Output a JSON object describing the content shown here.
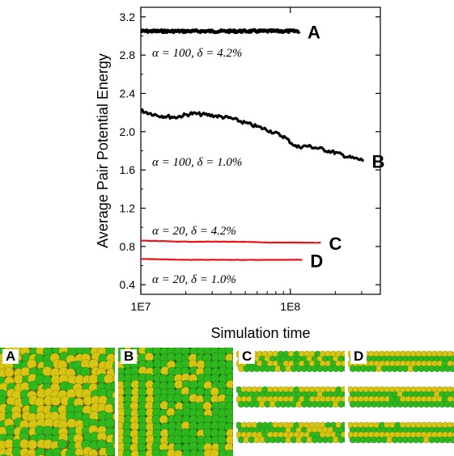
{
  "chart_data": {
    "type": "line",
    "xlabel": "Simulation time",
    "ylabel": "Average Pair Potential Energy",
    "xscale": "log",
    "xlim": [
      10000000,
      400000000
    ],
    "ylim": [
      0.3,
      3.3
    ],
    "x_ticks": [
      {
        "value": 10000000,
        "label": "1E7"
      },
      {
        "value": 100000000,
        "label": "1E8"
      }
    ],
    "y_ticks": [
      0.4,
      0.8,
      1.2,
      1.6,
      2.0,
      2.4,
      2.8,
      3.2
    ],
    "y_tick_labels": [
      "0.4",
      "0.8",
      "1.2",
      "1.6",
      "2.0",
      "2.4",
      "2.8",
      "3.2"
    ],
    "grid": false,
    "legend": "none",
    "series": [
      {
        "name": "A",
        "color": "#000000",
        "x": [
          10000000,
          20000000,
          40000000,
          70000000,
          115000000
        ],
        "y": [
          3.05,
          3.05,
          3.05,
          3.05,
          3.05
        ]
      },
      {
        "name": "B",
        "color": "#000000",
        "x": [
          10000000,
          13000000,
          17000000,
          22000000,
          30000000,
          40000000,
          55000000,
          70000000,
          90000000,
          110000000,
          130000000,
          160000000,
          200000000,
          250000000,
          310000000
        ],
        "y": [
          2.22,
          2.17,
          2.15,
          2.19,
          2.17,
          2.14,
          2.07,
          2.02,
          1.95,
          1.84,
          1.85,
          1.82,
          1.78,
          1.73,
          1.7
        ]
      },
      {
        "name": "C",
        "color": "#e8141c",
        "x": [
          10000000,
          20000000,
          40000000,
          80000000,
          160000000
        ],
        "y": [
          0.86,
          0.85,
          0.85,
          0.84,
          0.84
        ]
      },
      {
        "name": "D",
        "color": "#e8141c",
        "x": [
          10000000,
          20000000,
          40000000,
          80000000,
          120000000
        ],
        "y": [
          0.67,
          0.66,
          0.66,
          0.66,
          0.66
        ]
      }
    ],
    "annotations": [
      {
        "id": "a",
        "text": "α = 100,  δ = 4.2%"
      },
      {
        "id": "b",
        "text": "α = 100,  δ = 1.0%"
      },
      {
        "id": "c",
        "text": "α = 20,  δ = 4.2%"
      },
      {
        "id": "d",
        "text": "α = 20,  δ = 1.0%"
      }
    ]
  },
  "panels": [
    {
      "label": "A"
    },
    {
      "label": "B"
    },
    {
      "label": "C"
    },
    {
      "label": "D"
    }
  ],
  "colors": {
    "green": "#2fb81e",
    "yellow": "#d6c512",
    "red": "#e8141c",
    "axis": "#000000"
  }
}
